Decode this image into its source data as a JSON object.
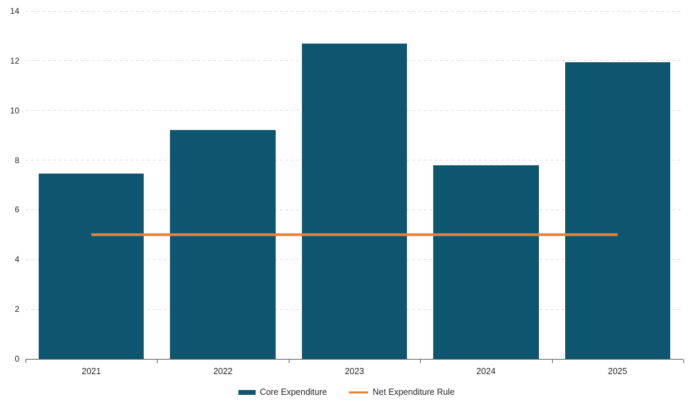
{
  "chart_data": {
    "type": "bar",
    "title": "",
    "categories": [
      "2021",
      "2022",
      "2023",
      "2024",
      "2025"
    ],
    "series": [
      {
        "name": "Core Expenditure",
        "kind": "bar",
        "color": "#0E566F",
        "values": [
          7.45,
          9.2,
          12.7,
          7.8,
          11.95
        ]
      },
      {
        "name": "Net Expenditure Rule",
        "kind": "line",
        "color": "#E8823A",
        "values": [
          5,
          5,
          5,
          5,
          5
        ]
      }
    ],
    "ylim": [
      0,
      14
    ],
    "y_ticks": [
      0,
      2,
      4,
      6,
      8,
      10,
      12,
      14
    ],
    "xlabel": "",
    "ylabel": "",
    "grid": "horizontal-dashed",
    "legend_position": "bottom-center"
  },
  "styles": {
    "background": "#FFFFFF",
    "grid_color": "#D9D9D9",
    "axis_color": "#595959",
    "label_color": "#262626"
  }
}
